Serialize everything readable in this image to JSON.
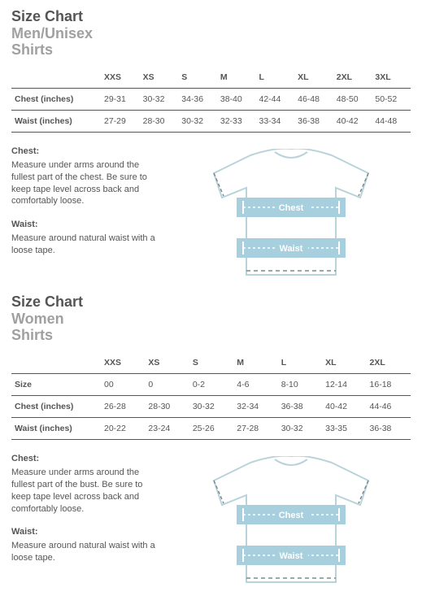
{
  "mens": {
    "heading": {
      "line1": "Size Chart",
      "line2": "Men/Unisex",
      "line3": "Shirts"
    },
    "columns": [
      "XXS",
      "XS",
      "S",
      "M",
      "L",
      "XL",
      "2XL",
      "3XL"
    ],
    "rows": [
      {
        "label": "Chest (inches)",
        "values": [
          "29-31",
          "30-32",
          "34-36",
          "38-40",
          "42-44",
          "46-48",
          "48-50",
          "50-52"
        ]
      },
      {
        "label": "Waist (inches)",
        "values": [
          "27-29",
          "28-30",
          "30-32",
          "32-33",
          "33-34",
          "36-38",
          "40-42",
          "44-48"
        ]
      }
    ],
    "instructions": {
      "chest": {
        "label": "Chest:",
        "text": "Measure under arms around the fullest part of the chest. Be sure to keep tape level across back and comfortably loose."
      },
      "waist": {
        "label": "Waist:",
        "text": "Measure around natural waist with a loose tape."
      }
    },
    "shirt": {
      "outline_color": "#b9d3db",
      "fill_color": "#ffffff",
      "band_color": "#a8cfdd",
      "band_text_color": "#ffffff",
      "dash_color": "#7d8a8e",
      "chest_label": "Chest",
      "waist_label": "Waist"
    }
  },
  "womens": {
    "heading": {
      "line1": "Size Chart",
      "line2": "Women",
      "line3": "Shirts"
    },
    "columns": [
      "XXS",
      "XS",
      "S",
      "M",
      "L",
      "XL",
      "2XL"
    ],
    "rows": [
      {
        "label": "Size",
        "values": [
          "00",
          "0",
          "0-2",
          "4-6",
          "8-10",
          "12-14",
          "16-18"
        ]
      },
      {
        "label": "Chest (inches)",
        "values": [
          "26-28",
          "28-30",
          "30-32",
          "32-34",
          "36-38",
          "40-42",
          "44-46"
        ]
      },
      {
        "label": "Waist (inches)",
        "values": [
          "20-22",
          "23-24",
          "25-26",
          "27-28",
          "30-32",
          "33-35",
          "36-38"
        ]
      }
    ],
    "instructions": {
      "chest": {
        "label": "Chest:",
        "text": "Measure under arms around the fullest part of the bust. Be sure to keep tape level across back and comfortably loose."
      },
      "waist": {
        "label": "Waist:",
        "text": "Measure around natural waist with a loose tape."
      }
    },
    "shirt": {
      "outline_color": "#b9d3db",
      "fill_color": "#ffffff",
      "band_color": "#a8cfdd",
      "band_text_color": "#ffffff",
      "dash_color": "#7d8a8e",
      "chest_label": "Chest",
      "waist_label": "Waist"
    }
  }
}
